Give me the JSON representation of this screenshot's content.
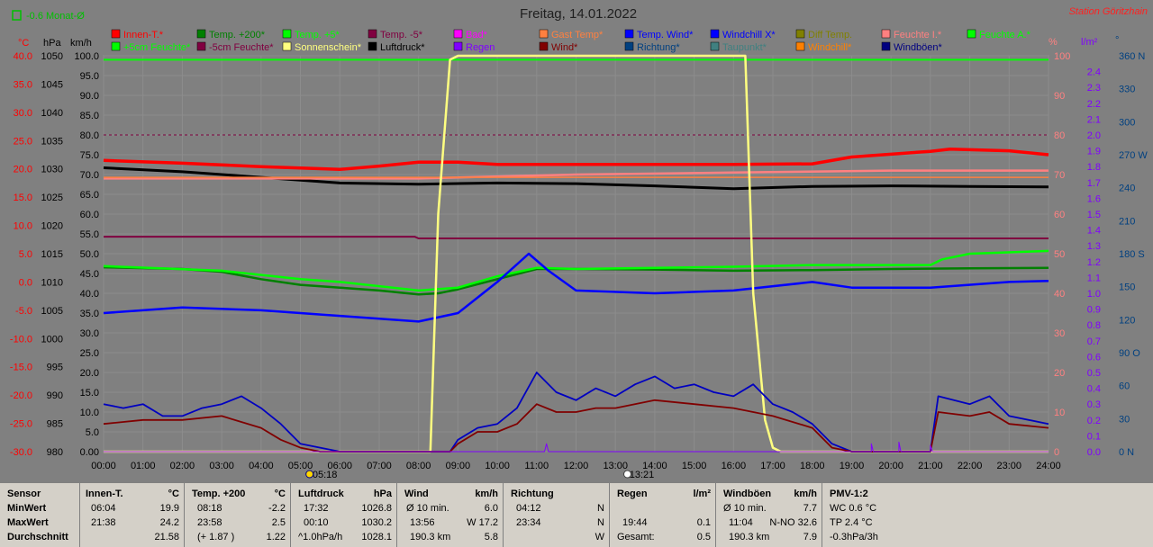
{
  "header": {
    "title": "Freitag, 14.01.2022",
    "station": "Station Göritzhain",
    "month_avg": "-0.6 Monat-Ø"
  },
  "units": {
    "temp": "°C",
    "pressure": "hPa",
    "wind": "km/h",
    "humidity": "%",
    "rain": "l/m²",
    "direction": "°"
  },
  "legend": [
    {
      "label": "Innen-T.*",
      "color": "#ff0000"
    },
    {
      "label": "Temp. +200*",
      "color": "#008000"
    },
    {
      "label": "Temp. +5*",
      "color": "#00ff00"
    },
    {
      "label": "Temp. -5*",
      "color": "#800040"
    },
    {
      "label": "Bad*",
      "color": "#ff00ff"
    },
    {
      "label": "Gast Temp*",
      "color": "#ff8040"
    },
    {
      "label": "Temp. Wind*",
      "color": "#0000ff"
    },
    {
      "label": "Windchill X*",
      "color": "#0000ff"
    },
    {
      "label": "Diff Temp.",
      "color": "#808000"
    },
    {
      "label": "Feuchte I.*",
      "color": "#ff8080"
    },
    {
      "label": "Feuchte A.*",
      "color": "#00ff00"
    },
    {
      "label": "+5cm Feuchte*",
      "color": "#00ff00"
    },
    {
      "label": "-5cm Feuchte*",
      "color": "#800040"
    },
    {
      "label": "Sonnenschein*",
      "color": "#ffff80"
    },
    {
      "label": "Luftdruck*",
      "color": "#000000"
    },
    {
      "label": "Regen",
      "color": "#8000ff"
    },
    {
      "label": "Wind*",
      "color": "#800000"
    },
    {
      "label": "Richtung*",
      "color": "#004080"
    },
    {
      "label": "Taupunkt*",
      "color": "#408080"
    },
    {
      "label": "Windchill*",
      "color": "#ff8000"
    },
    {
      "label": "Windböen*",
      "color": "#000080"
    }
  ],
  "axes": {
    "temp_ticks": [
      "40.0",
      "35.0",
      "30.0",
      "25.0",
      "20.0",
      "15.0",
      "10.0",
      "5.0",
      "0.0",
      "-5.0",
      "-10.0",
      "-15.0",
      "-20.0",
      "-25.0",
      "-30.0"
    ],
    "pressure_ticks": [
      "1050",
      "1045",
      "1040",
      "1035",
      "1030",
      "1025",
      "1020",
      "1015",
      "1010",
      "1005",
      "1000",
      "995",
      "990",
      "985",
      "980"
    ],
    "wind_ticks": [
      "100.0",
      "95.0",
      "90.0",
      "85.0",
      "80.0",
      "75.0",
      "70.0",
      "65.0",
      "60.0",
      "55.0",
      "50.0",
      "45.0",
      "40.0",
      "35.0",
      "30.0",
      "25.0",
      "20.0",
      "15.0",
      "10.0",
      "5.0",
      "0.00"
    ],
    "humidity_ticks": [
      "100",
      "90",
      "80",
      "70",
      "60",
      "50",
      "40",
      "30",
      "20",
      "10",
      "0"
    ],
    "rain_ticks": [
      "2.4",
      "2.3",
      "2.2",
      "2.1",
      "2.0",
      "1.9",
      "1.8",
      "1.7",
      "1.6",
      "1.5",
      "1.4",
      "1.3",
      "1.2",
      "1.1",
      "1.0",
      "0.9",
      "0.8",
      "0.7",
      "0.6",
      "0.5",
      "0.4",
      "0.3",
      "0.2",
      "0.1",
      "0.0"
    ],
    "direction_ticks": [
      "360 N",
      "330",
      "300",
      "270 W",
      "240",
      "210",
      "180 S",
      "150",
      "120",
      "90 O",
      "60",
      "30",
      "0 N"
    ],
    "time_ticks": [
      "00:00",
      "01:00",
      "02:00",
      "03:00",
      "04:00",
      "05:00",
      "06:00",
      "07:00",
      "08:00",
      "09:00",
      "10:00",
      "11:00",
      "12:00",
      "13:00",
      "14:00",
      "15:00",
      "16:00",
      "17:00",
      "18:00",
      "19:00",
      "20:00",
      "21:00",
      "22:00",
      "23:00",
      "24:00"
    ],
    "sunrise": "05:18",
    "moonrise": "13:21"
  },
  "chart_data": {
    "type": "line",
    "title": "Freitag, 14.01.2022",
    "x_unit": "hour",
    "left_axis_temp_range": [
      -30,
      40
    ],
    "wind_axis_range": [
      0,
      100
    ],
    "pressure_range": [
      980,
      1050
    ],
    "humidity_range": [
      0,
      100
    ],
    "rain_range": [
      0,
      2.5
    ],
    "direction_range": [
      0,
      360
    ],
    "series": [
      {
        "name": "Innen-T.*",
        "axis": "temp",
        "color": "#ff0000",
        "width": 3.5,
        "points": [
          [
            0,
            21.5
          ],
          [
            2,
            21
          ],
          [
            4,
            20.4
          ],
          [
            6,
            19.9
          ],
          [
            7,
            20.5
          ],
          [
            8,
            21.2
          ],
          [
            9,
            21.2
          ],
          [
            10,
            20.8
          ],
          [
            12,
            20.8
          ],
          [
            14,
            20.8
          ],
          [
            16,
            20.8
          ],
          [
            18,
            20.9
          ],
          [
            19,
            22.1
          ],
          [
            21,
            23.1
          ],
          [
            21.5,
            23.5
          ],
          [
            23,
            23.2
          ],
          [
            24,
            22.5
          ]
        ]
      },
      {
        "name": "Temp. +200*",
        "axis": "temp",
        "color": "#008000",
        "width": 2.5,
        "points": [
          [
            0,
            2.6
          ],
          [
            2,
            2.3
          ],
          [
            3,
            1.8
          ],
          [
            4,
            0.5
          ],
          [
            5,
            -0.5
          ],
          [
            6,
            -1
          ],
          [
            7,
            -1.5
          ],
          [
            8,
            -2.2
          ],
          [
            8.5,
            -2
          ],
          [
            9,
            -1.3
          ],
          [
            10,
            0.5
          ],
          [
            11,
            2.3
          ],
          [
            12,
            2.3
          ],
          [
            14,
            2.2
          ],
          [
            16,
            2
          ],
          [
            18,
            2.1
          ],
          [
            20,
            2.3
          ],
          [
            22,
            2.4
          ],
          [
            24,
            2.5
          ]
        ]
      },
      {
        "name": "Temp. +5*",
        "axis": "temp",
        "color": "#00ff00",
        "width": 2.5,
        "points": [
          [
            0,
            2.8
          ],
          [
            3,
            2
          ],
          [
            5,
            0.5
          ],
          [
            6,
            0
          ],
          [
            8,
            -1.5
          ],
          [
            9,
            -1
          ],
          [
            10,
            1
          ],
          [
            11,
            2.5
          ],
          [
            12,
            2.3
          ],
          [
            14,
            2.5
          ],
          [
            16,
            2.7
          ],
          [
            18,
            3
          ],
          [
            21,
            3
          ],
          [
            21.3,
            4
          ],
          [
            22,
            5
          ],
          [
            24,
            5.5
          ]
        ]
      },
      {
        "name": "Temp. -5*",
        "axis": "temp",
        "color": "#800040",
        "width": 2,
        "points": [
          [
            0,
            8
          ],
          [
            7.9,
            8
          ],
          [
            8,
            7.7
          ],
          [
            24,
            7.7
          ]
        ]
      },
      {
        "name": "Luftdruck*",
        "axis": "pressure",
        "color": "#000000",
        "width": 3,
        "points": [
          [
            0,
            1030.2
          ],
          [
            2,
            1029.5
          ],
          [
            4,
            1028.5
          ],
          [
            6,
            1027.5
          ],
          [
            8,
            1027.3
          ],
          [
            10,
            1027.5
          ],
          [
            12,
            1027.4
          ],
          [
            14,
            1027
          ],
          [
            16,
            1026.5
          ],
          [
            18,
            1026.9
          ],
          [
            20,
            1027
          ],
          [
            22,
            1026.9
          ],
          [
            24,
            1026.8
          ]
        ]
      },
      {
        "name": "Feuchte I.*",
        "axis": "humidity",
        "color": "#ff8080",
        "width": 2.5,
        "points": [
          [
            0,
            69
          ],
          [
            8,
            69
          ],
          [
            12,
            70
          ],
          [
            16,
            70.5
          ],
          [
            20,
            71
          ],
          [
            24,
            71
          ]
        ]
      },
      {
        "name": "Feuchte A.*",
        "axis": "humidity",
        "color": "#00ff00",
        "width": 2,
        "points": [
          [
            0,
            99
          ],
          [
            24,
            99
          ]
        ]
      },
      {
        "name": "Gast Temp*",
        "axis": "temp",
        "color": "#ff8040",
        "width": 1.5,
        "points": [
          [
            0,
            18.5
          ],
          [
            24,
            18.5
          ]
        ]
      },
      {
        "name": "Temp. Wind*",
        "axis": "temp",
        "color": "#0000ff",
        "width": 2.5,
        "points": [
          [
            0,
            -5.5
          ],
          [
            2,
            -4.5
          ],
          [
            4,
            -5
          ],
          [
            6,
            -6
          ],
          [
            8,
            -7
          ],
          [
            9,
            -5.5
          ],
          [
            10,
            0
          ],
          [
            10.8,
            5
          ],
          [
            11.3,
            2
          ],
          [
            12,
            -1.5
          ],
          [
            14,
            -2
          ],
          [
            16,
            -1.5
          ],
          [
            18,
            0
          ],
          [
            19,
            -1
          ],
          [
            21,
            -1
          ],
          [
            23,
            0
          ],
          [
            24,
            0.2
          ]
        ]
      },
      {
        "name": "Sonnenschein*",
        "axis": "wind",
        "color": "#ffff80",
        "width": 2.5,
        "points": [
          [
            0,
            0
          ],
          [
            8.3,
            0
          ],
          [
            8.5,
            60
          ],
          [
            8.8,
            99
          ],
          [
            9,
            100
          ],
          [
            16.3,
            100
          ],
          [
            16.5,
            40
          ],
          [
            16.8,
            8
          ],
          [
            17,
            1
          ],
          [
            17.2,
            0
          ],
          [
            24,
            0
          ]
        ]
      },
      {
        "name": "Windböen*",
        "axis": "wind",
        "color": "#0000c0",
        "width": 1.8,
        "points": [
          [
            0,
            12
          ],
          [
            0.5,
            11
          ],
          [
            1,
            12
          ],
          [
            1.5,
            9
          ],
          [
            2,
            9
          ],
          [
            2.5,
            11
          ],
          [
            3,
            12
          ],
          [
            3.5,
            14
          ],
          [
            4,
            11
          ],
          [
            4.5,
            7
          ],
          [
            5,
            2
          ],
          [
            5.5,
            1
          ],
          [
            6,
            0
          ],
          [
            8.8,
            0
          ],
          [
            9,
            3
          ],
          [
            9.5,
            6
          ],
          [
            10,
            7
          ],
          [
            10.5,
            11
          ],
          [
            11,
            20
          ],
          [
            11.5,
            15
          ],
          [
            12,
            13
          ],
          [
            12.5,
            16
          ],
          [
            13,
            14
          ],
          [
            13.5,
            17
          ],
          [
            14,
            19
          ],
          [
            14.5,
            16
          ],
          [
            15,
            17
          ],
          [
            15.5,
            15
          ],
          [
            16,
            14
          ],
          [
            16.5,
            17
          ],
          [
            17,
            12
          ],
          [
            17.5,
            10
          ],
          [
            18,
            7
          ],
          [
            18.5,
            2
          ],
          [
            19,
            0
          ],
          [
            21,
            0
          ],
          [
            21.2,
            14
          ],
          [
            22,
            12
          ],
          [
            22.5,
            14
          ],
          [
            23,
            9
          ],
          [
            24,
            7
          ]
        ]
      },
      {
        "name": "Wind*",
        "axis": "wind",
        "color": "#800000",
        "width": 1.8,
        "points": [
          [
            0,
            7
          ],
          [
            1,
            8
          ],
          [
            2,
            8
          ],
          [
            3,
            9
          ],
          [
            4,
            6
          ],
          [
            4.5,
            3
          ],
          [
            5,
            1
          ],
          [
            5.5,
            0
          ],
          [
            8.8,
            0
          ],
          [
            9,
            2
          ],
          [
            9.5,
            5
          ],
          [
            10,
            5
          ],
          [
            10.5,
            7
          ],
          [
            11,
            12
          ],
          [
            11.5,
            10
          ],
          [
            12,
            10
          ],
          [
            12.5,
            11
          ],
          [
            13,
            11
          ],
          [
            14,
            13
          ],
          [
            15,
            12
          ],
          [
            16,
            11
          ],
          [
            17,
            9
          ],
          [
            18,
            6
          ],
          [
            18.5,
            1
          ],
          [
            19,
            0
          ],
          [
            21,
            0
          ],
          [
            21.2,
            10
          ],
          [
            22,
            9
          ],
          [
            22.5,
            10
          ],
          [
            23,
            7
          ],
          [
            24,
            6
          ]
        ]
      },
      {
        "name": "Regen",
        "axis": "rain",
        "color": "#8000ff",
        "width": 1,
        "points": [
          [
            0,
            0
          ],
          [
            11.2,
            0
          ],
          [
            11.25,
            0.05
          ],
          [
            11.3,
            0
          ],
          [
            19.5,
            0
          ],
          [
            19.5,
            0.05
          ],
          [
            19.55,
            0
          ],
          [
            20.2,
            0
          ],
          [
            20.2,
            0.06
          ],
          [
            20.25,
            0
          ],
          [
            21,
            0
          ],
          [
            21,
            0.04
          ],
          [
            21.05,
            0
          ],
          [
            24,
            0
          ]
        ]
      }
    ]
  },
  "stats": {
    "sensor": {
      "h": "Sensor",
      "min": "MinWert",
      "max": "MaxWert",
      "avg": "Durchschnitt"
    },
    "innen": {
      "h": "Innen-T.",
      "u": "°C",
      "min_t": "06:04",
      "min_v": "19.9",
      "max_t": "21:38",
      "max_v": "24.2",
      "avg_v": "21.58"
    },
    "temp200": {
      "h": "Temp. +200",
      "u": "°C",
      "min_t": "08:18",
      "min_v": "-2.2",
      "max_t": "23:58",
      "max_v": "2.5",
      "avg_t": "(+ 1.87 )",
      "avg_v": "1.22"
    },
    "luft": {
      "h": "Luftdruck",
      "u": "hPa",
      "min_t": "17:32",
      "min_v": "1026.8",
      "max_t": "00:10",
      "max_v": "1030.2",
      "avg_t": "^1.0hPa/h",
      "avg_v": "1028.1"
    },
    "wind": {
      "h": "Wind",
      "u": "km/h",
      "min_t": "Ø 10 min.",
      "min_v": "6.0",
      "max_t": "13:56",
      "max_v": "W 17.2",
      "avg_t": "190.3 km",
      "avg_v": "5.8"
    },
    "richtung": {
      "h": "Richtung",
      "min_t": "04:12",
      "min_v": "N",
      "max_t": "23:34",
      "max_v": "N",
      "avg_v": "W"
    },
    "regen": {
      "h": "Regen",
      "u": "l/m²",
      "max_t": "19:44",
      "max_v": "0.1",
      "avg_t": "Gesamt:",
      "avg_v": "0.5"
    },
    "boeen": {
      "h": "Windböen",
      "u": "km/h",
      "min_t": "Ø 10 min.",
      "min_v": "7.7",
      "max_t": "11:04",
      "max_v": "N-NO 32.6",
      "avg_t": "190.3 km",
      "avg_v": "7.9"
    },
    "pmv": {
      "h": "PMV-1:2",
      "r1": "WC 0.6 °C",
      "r2": "TP 2.4 °C",
      "r3": "-0.3hPa/3h"
    }
  }
}
